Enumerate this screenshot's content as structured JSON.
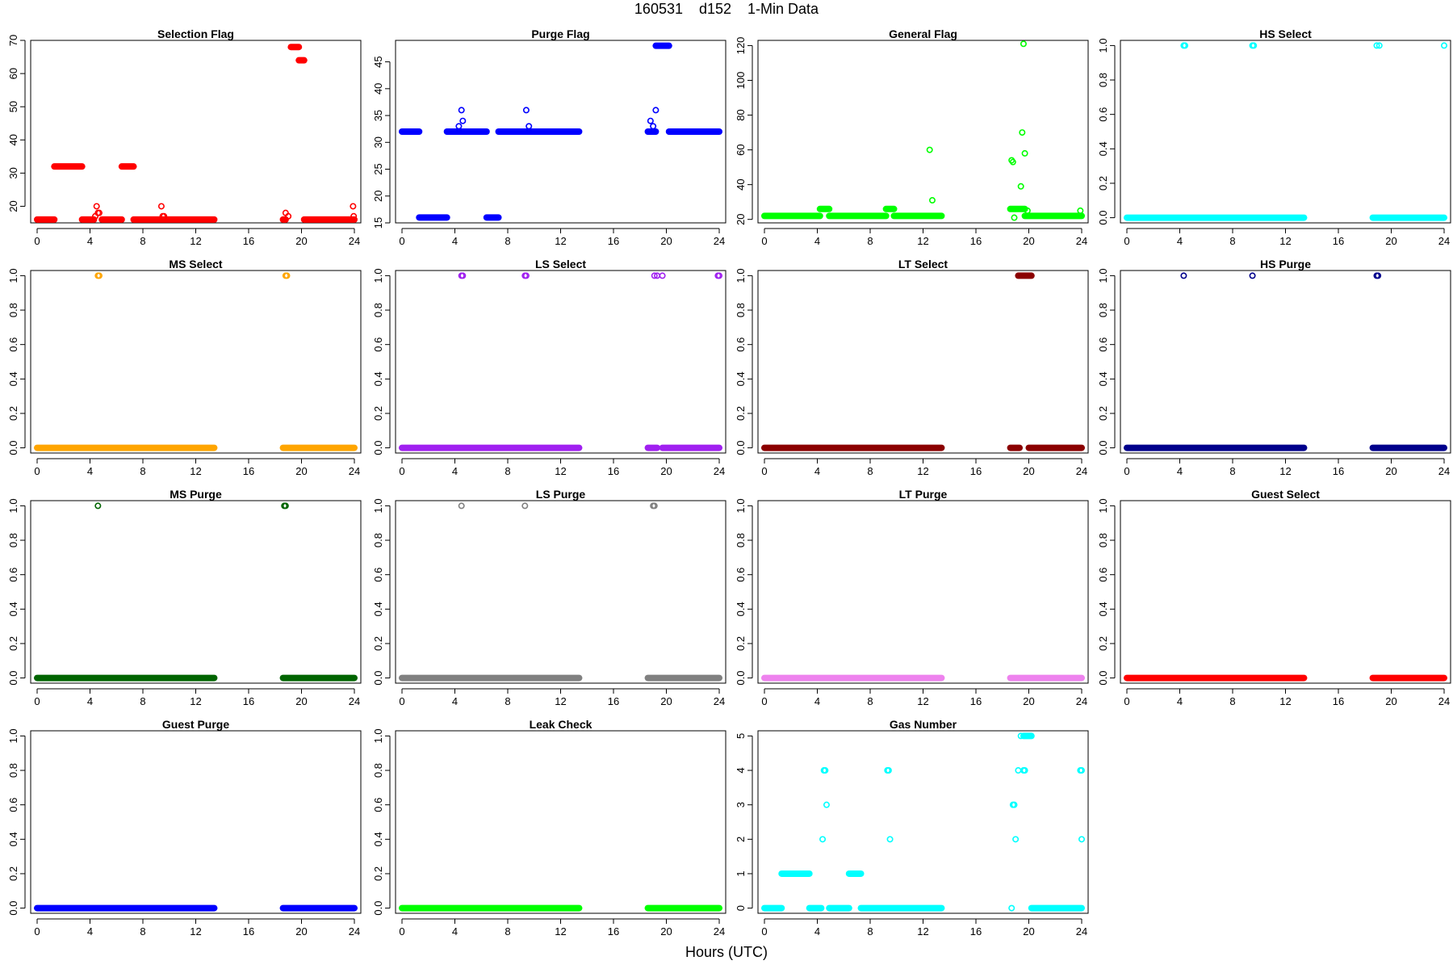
{
  "figure": {
    "title": "160531    d152    1-Min Data",
    "xlabel": "Hours (UTC)"
  },
  "chart_data": [
    {
      "type": "scatter",
      "title": "Selection Flag",
      "color": "#ff0000",
      "xlim": [
        0,
        24
      ],
      "xticks": [
        0,
        4,
        8,
        12,
        16,
        20,
        24
      ],
      "ylim": [
        15,
        70
      ],
      "yticks": [
        20,
        30,
        40,
        50,
        60,
        70
      ],
      "bands": [
        {
          "x": [
            0,
            1.3
          ],
          "y": 16
        },
        {
          "x": [
            1.3,
            3.4
          ],
          "y": 32
        },
        {
          "x": [
            3.4,
            4.3
          ],
          "y": 16
        },
        {
          "x": [
            4.9,
            6.4
          ],
          "y": 16
        },
        {
          "x": [
            6.4,
            7.3
          ],
          "y": 32
        },
        {
          "x": [
            7.3,
            13.4
          ],
          "y": 16
        },
        {
          "x": [
            18.6,
            18.8
          ],
          "y": 16
        },
        {
          "x": [
            19.2,
            19.8
          ],
          "y": 68
        },
        {
          "x": [
            19.8,
            20.2
          ],
          "y": 64
        },
        {
          "x": [
            20.2,
            24
          ],
          "y": 16
        }
      ],
      "points": [
        [
          4.4,
          17
        ],
        [
          4.6,
          18
        ],
        [
          4.5,
          20
        ],
        [
          4.7,
          18
        ],
        [
          9.4,
          20
        ],
        [
          9.5,
          17
        ],
        [
          9.6,
          17
        ],
        [
          18.8,
          18
        ],
        [
          19.0,
          17
        ],
        [
          23.9,
          20
        ],
        [
          23.95,
          17
        ]
      ]
    },
    {
      "type": "scatter",
      "title": "Purge Flag",
      "color": "#0000ff",
      "xlim": [
        0,
        24
      ],
      "xticks": [
        0,
        4,
        8,
        12,
        16,
        20,
        24
      ],
      "ylim": [
        15,
        49
      ],
      "yticks": [
        15,
        20,
        25,
        30,
        35,
        40,
        45
      ],
      "bands": [
        {
          "x": [
            0,
            1.3
          ],
          "y": 32
        },
        {
          "x": [
            1.3,
            3.4
          ],
          "y": 16
        },
        {
          "x": [
            3.4,
            6.4
          ],
          "y": 32
        },
        {
          "x": [
            6.4,
            7.3
          ],
          "y": 16
        },
        {
          "x": [
            7.3,
            13.4
          ],
          "y": 32
        },
        {
          "x": [
            18.6,
            19.2
          ],
          "y": 32
        },
        {
          "x": [
            19.2,
            20.2
          ],
          "y": 48
        },
        {
          "x": [
            20.2,
            24
          ],
          "y": 32
        }
      ],
      "points": [
        [
          4.3,
          33
        ],
        [
          4.5,
          36
        ],
        [
          4.6,
          34
        ],
        [
          9.4,
          36
        ],
        [
          9.6,
          33
        ],
        [
          18.8,
          34
        ],
        [
          19.0,
          33
        ],
        [
          19.2,
          36
        ],
        [
          18.9,
          32
        ]
      ]
    },
    {
      "type": "scatter",
      "title": "General Flag",
      "color": "#00ff00",
      "xlim": [
        0,
        24
      ],
      "xticks": [
        0,
        4,
        8,
        12,
        16,
        20,
        24
      ],
      "ylim": [
        18,
        123
      ],
      "yticks": [
        20,
        40,
        60,
        80,
        100,
        120
      ],
      "bands": [
        {
          "x": [
            0,
            4.2
          ],
          "y": 22
        },
        {
          "x": [
            4.2,
            4.9
          ],
          "y": 26
        },
        {
          "x": [
            4.9,
            9.2
          ],
          "y": 22
        },
        {
          "x": [
            9.2,
            9.8
          ],
          "y": 26
        },
        {
          "x": [
            9.8,
            13.4
          ],
          "y": 22
        },
        {
          "x": [
            18.6,
            19.7
          ],
          "y": 26
        },
        {
          "x": [
            19.7,
            24
          ],
          "y": 22
        }
      ],
      "points": [
        [
          12.5,
          60
        ],
        [
          12.7,
          31
        ],
        [
          18.7,
          54
        ],
        [
          18.8,
          53
        ],
        [
          18.9,
          21
        ],
        [
          19.4,
          39
        ],
        [
          19.5,
          70
        ],
        [
          19.7,
          58
        ],
        [
          19.6,
          121
        ],
        [
          19.9,
          25
        ],
        [
          23.9,
          25
        ]
      ]
    },
    {
      "type": "scatter",
      "title": "HS Select",
      "color": "#00ffff",
      "xlim": [
        0,
        24
      ],
      "xticks": [
        0,
        4,
        8,
        12,
        16,
        20,
        24
      ],
      "ylim": [
        -0.03,
        1.03
      ],
      "yticks": [
        0.0,
        0.2,
        0.4,
        0.6,
        0.8,
        1.0
      ],
      "bands": [
        {
          "x": [
            0,
            13.4
          ],
          "y": 0
        },
        {
          "x": [
            18.6,
            24
          ],
          "y": 0
        }
      ],
      "points": [
        [
          4.3,
          1
        ],
        [
          4.4,
          1
        ],
        [
          9.5,
          1
        ],
        [
          9.6,
          1
        ],
        [
          18.9,
          1
        ],
        [
          19.1,
          1
        ],
        [
          24.0,
          1
        ]
      ]
    },
    {
      "type": "scatter",
      "title": "MS Select",
      "color": "#ffa500",
      "xlim": [
        0,
        24
      ],
      "xticks": [
        0,
        4,
        8,
        12,
        16,
        20,
        24
      ],
      "ylim": [
        -0.03,
        1.03
      ],
      "yticks": [
        0.0,
        0.2,
        0.4,
        0.6,
        0.8,
        1.0
      ],
      "bands": [
        {
          "x": [
            0,
            13.4
          ],
          "y": 0
        },
        {
          "x": [
            18.6,
            24
          ],
          "y": 0
        }
      ],
      "points": [
        [
          4.6,
          1
        ],
        [
          4.7,
          1
        ],
        [
          18.8,
          1
        ],
        [
          18.9,
          1
        ]
      ]
    },
    {
      "type": "scatter",
      "title": "LS Select",
      "color": "#a020f0",
      "xlim": [
        0,
        24
      ],
      "xticks": [
        0,
        4,
        8,
        12,
        16,
        20,
        24
      ],
      "ylim": [
        -0.03,
        1.03
      ],
      "yticks": [
        0.0,
        0.2,
        0.4,
        0.6,
        0.8,
        1.0
      ],
      "bands": [
        {
          "x": [
            0,
            13.4
          ],
          "y": 0
        },
        {
          "x": [
            18.6,
            19.3
          ],
          "y": 0
        },
        {
          "x": [
            19.7,
            24
          ],
          "y": 0
        }
      ],
      "points": [
        [
          4.5,
          1
        ],
        [
          4.6,
          1
        ],
        [
          9.3,
          1
        ],
        [
          9.4,
          1
        ],
        [
          19.1,
          1
        ],
        [
          19.3,
          1
        ],
        [
          19.7,
          1
        ],
        [
          23.9,
          1
        ],
        [
          24.0,
          1
        ]
      ]
    },
    {
      "type": "scatter",
      "title": "LT Select",
      "color": "#8b0000",
      "xlim": [
        0,
        24
      ],
      "xticks": [
        0,
        4,
        8,
        12,
        16,
        20,
        24
      ],
      "ylim": [
        -0.03,
        1.03
      ],
      "yticks": [
        0.0,
        0.2,
        0.4,
        0.6,
        0.8,
        1.0
      ],
      "bands": [
        {
          "x": [
            0,
            13.4
          ],
          "y": 0
        },
        {
          "x": [
            18.6,
            19.3
          ],
          "y": 0
        },
        {
          "x": [
            20.0,
            24
          ],
          "y": 0
        },
        {
          "x": [
            19.2,
            20.2
          ],
          "y": 1
        }
      ],
      "points": []
    },
    {
      "type": "scatter",
      "title": "HS Purge",
      "color": "#00008b",
      "xlim": [
        0,
        24
      ],
      "xticks": [
        0,
        4,
        8,
        12,
        16,
        20,
        24
      ],
      "ylim": [
        -0.03,
        1.03
      ],
      "yticks": [
        0.0,
        0.2,
        0.4,
        0.6,
        0.8,
        1.0
      ],
      "bands": [
        {
          "x": [
            0,
            13.4
          ],
          "y": 0
        },
        {
          "x": [
            18.6,
            24
          ],
          "y": 0
        }
      ],
      "points": [
        [
          4.3,
          1
        ],
        [
          9.5,
          1
        ],
        [
          18.9,
          1
        ],
        [
          19.0,
          1
        ]
      ]
    },
    {
      "type": "scatter",
      "title": "MS Purge",
      "color": "#006400",
      "xlim": [
        0,
        24
      ],
      "xticks": [
        0,
        4,
        8,
        12,
        16,
        20,
        24
      ],
      "ylim": [
        -0.03,
        1.03
      ],
      "yticks": [
        0.0,
        0.2,
        0.4,
        0.6,
        0.8,
        1.0
      ],
      "bands": [
        {
          "x": [
            0,
            13.4
          ],
          "y": 0
        },
        {
          "x": [
            18.6,
            24
          ],
          "y": 0
        }
      ],
      "points": [
        [
          4.6,
          1
        ],
        [
          18.7,
          1
        ],
        [
          18.8,
          1
        ]
      ]
    },
    {
      "type": "scatter",
      "title": "LS Purge",
      "color": "#808080",
      "xlim": [
        0,
        24
      ],
      "xticks": [
        0,
        4,
        8,
        12,
        16,
        20,
        24
      ],
      "ylim": [
        -0.03,
        1.03
      ],
      "yticks": [
        0.0,
        0.2,
        0.4,
        0.6,
        0.8,
        1.0
      ],
      "bands": [
        {
          "x": [
            0,
            13.4
          ],
          "y": 0
        },
        {
          "x": [
            18.6,
            24
          ],
          "y": 0
        }
      ],
      "points": [
        [
          4.5,
          1
        ],
        [
          9.3,
          1
        ],
        [
          19.0,
          1
        ],
        [
          19.1,
          1
        ]
      ]
    },
    {
      "type": "scatter",
      "title": "LT Purge",
      "color": "#ee82ee",
      "xlim": [
        0,
        24
      ],
      "xticks": [
        0,
        4,
        8,
        12,
        16,
        20,
        24
      ],
      "ylim": [
        -0.03,
        1.03
      ],
      "yticks": [
        0.0,
        0.2,
        0.4,
        0.6,
        0.8,
        1.0
      ],
      "bands": [
        {
          "x": [
            0,
            13.4
          ],
          "y": 0
        },
        {
          "x": [
            18.6,
            24
          ],
          "y": 0
        }
      ],
      "points": []
    },
    {
      "type": "scatter",
      "title": "Guest Select",
      "color": "#ff0000",
      "xlim": [
        0,
        24
      ],
      "xticks": [
        0,
        4,
        8,
        12,
        16,
        20,
        24
      ],
      "ylim": [
        -0.03,
        1.03
      ],
      "yticks": [
        0.0,
        0.2,
        0.4,
        0.6,
        0.8,
        1.0
      ],
      "bands": [
        {
          "x": [
            0,
            13.4
          ],
          "y": 0
        },
        {
          "x": [
            18.6,
            24
          ],
          "y": 0
        }
      ],
      "points": []
    },
    {
      "type": "scatter",
      "title": "Guest Purge",
      "color": "#0000ff",
      "xlim": [
        0,
        24
      ],
      "xticks": [
        0,
        4,
        8,
        12,
        16,
        20,
        24
      ],
      "ylim": [
        -0.03,
        1.03
      ],
      "yticks": [
        0.0,
        0.2,
        0.4,
        0.6,
        0.8,
        1.0
      ],
      "bands": [
        {
          "x": [
            0,
            13.4
          ],
          "y": 0
        },
        {
          "x": [
            18.6,
            24
          ],
          "y": 0
        }
      ],
      "points": []
    },
    {
      "type": "scatter",
      "title": "Leak Check",
      "color": "#00ff00",
      "xlim": [
        0,
        24
      ],
      "xticks": [
        0,
        4,
        8,
        12,
        16,
        20,
        24
      ],
      "ylim": [
        -0.03,
        1.03
      ],
      "yticks": [
        0.0,
        0.2,
        0.4,
        0.6,
        0.8,
        1.0
      ],
      "bands": [
        {
          "x": [
            0,
            13.4
          ],
          "y": 0
        },
        {
          "x": [
            18.6,
            24
          ],
          "y": 0
        }
      ],
      "points": []
    },
    {
      "type": "scatter",
      "title": "Gas Number",
      "color": "#00ffff",
      "xlim": [
        0,
        24
      ],
      "xticks": [
        0,
        4,
        8,
        12,
        16,
        20,
        24
      ],
      "ylim": [
        -0.15,
        5.15
      ],
      "yticks": [
        0,
        1,
        2,
        3,
        4,
        5
      ],
      "bands": [
        {
          "x": [
            0,
            1.3
          ],
          "y": 0
        },
        {
          "x": [
            1.3,
            3.4
          ],
          "y": 1
        },
        {
          "x": [
            3.4,
            4.3
          ],
          "y": 0
        },
        {
          "x": [
            4.9,
            6.4
          ],
          "y": 0
        },
        {
          "x": [
            6.4,
            7.3
          ],
          "y": 1
        },
        {
          "x": [
            7.3,
            13.4
          ],
          "y": 0
        },
        {
          "x": [
            19.6,
            20.2
          ],
          "y": 5
        },
        {
          "x": [
            20.2,
            24
          ],
          "y": 0
        }
      ],
      "points": [
        [
          4.4,
          2
        ],
        [
          4.5,
          4
        ],
        [
          4.6,
          4
        ],
        [
          4.7,
          3
        ],
        [
          9.3,
          4
        ],
        [
          9.4,
          4
        ],
        [
          9.5,
          2
        ],
        [
          18.7,
          0
        ],
        [
          18.8,
          3
        ],
        [
          18.9,
          3
        ],
        [
          19.0,
          2
        ],
        [
          19.2,
          4
        ],
        [
          19.4,
          5
        ],
        [
          19.6,
          4
        ],
        [
          19.7,
          4
        ],
        [
          23.9,
          4
        ],
        [
          24.0,
          4
        ],
        [
          24.0,
          2
        ]
      ]
    }
  ]
}
